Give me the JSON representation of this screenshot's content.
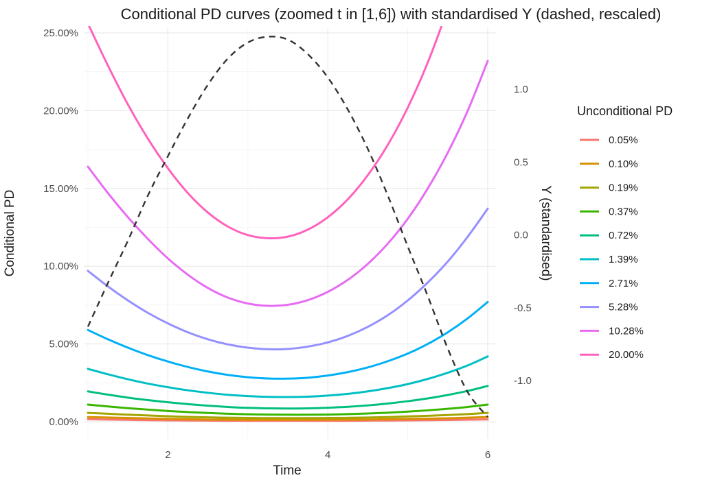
{
  "chart_data": {
    "type": "line",
    "title": "Conditional PD curves (zoomed t in [1,6]) with standardised Y (dashed, rescaled)",
    "xlabel": "Time",
    "ylabel": "Conditional PD",
    "y2label": "Y (standardised)",
    "xlim": [
      1,
      6
    ],
    "ylim": [
      0,
      0.25
    ],
    "y2lim": [
      -1.27,
      1.42
    ],
    "x_ticks": [
      2,
      4,
      6
    ],
    "x_tick_labels": [
      "2",
      "4",
      "6"
    ],
    "y_ticks": [
      0,
      0.05,
      0.1,
      0.15,
      0.2,
      0.25
    ],
    "y_tick_labels": [
      "0.00%",
      "5.00%",
      "10.00%",
      "15.00%",
      "20.00%",
      "25.00%"
    ],
    "y2_ticks": [
      -1.0,
      -0.5,
      0.0,
      0.5,
      1.0
    ],
    "y2_tick_labels": [
      "-1.0",
      "-0.5",
      "0.0",
      "0.5",
      "1.0"
    ],
    "grid": true,
    "legend": {
      "title": "Unconditional PD",
      "position": "right"
    },
    "x": [
      1.0,
      1.25,
      1.5,
      1.75,
      2.0,
      2.25,
      2.5,
      2.75,
      3.0,
      3.25,
      3.5,
      3.75,
      4.0,
      4.25,
      4.5,
      4.75,
      5.0,
      5.25,
      5.5,
      5.75,
      6.0
    ],
    "series": [
      {
        "name": "0.05%",
        "color": "#F8766D",
        "values": [
          0.0016,
          0.0014,
          0.0012,
          0.001,
          0.0009,
          0.0008,
          0.0007,
          0.0006,
          0.0006,
          0.0006,
          0.0006,
          0.0006,
          0.0006,
          0.0006,
          0.0007,
          0.0008,
          0.0009,
          0.001,
          0.0011,
          0.0013,
          0.0015
        ]
      },
      {
        "name": "0.10%",
        "color": "#D89000",
        "values": [
          0.003,
          0.0027,
          0.0024,
          0.0021,
          0.0018,
          0.0016,
          0.0014,
          0.0013,
          0.0012,
          0.0012,
          0.0012,
          0.0012,
          0.0013,
          0.0013,
          0.0014,
          0.0016,
          0.0018,
          0.002,
          0.0022,
          0.0026,
          0.003
        ]
      },
      {
        "name": "0.19%",
        "color": "#A3A500",
        "values": [
          0.0057,
          0.0051,
          0.0045,
          0.004,
          0.0035,
          0.0031,
          0.0028,
          0.0026,
          0.0024,
          0.0023,
          0.0023,
          0.0023,
          0.0024,
          0.0025,
          0.0027,
          0.003,
          0.0034,
          0.0038,
          0.0043,
          0.0049,
          0.0057
        ]
      },
      {
        "name": "0.37%",
        "color": "#39B600",
        "values": [
          0.011,
          0.0098,
          0.0087,
          0.0078,
          0.0069,
          0.0062,
          0.0056,
          0.0051,
          0.0048,
          0.0046,
          0.0045,
          0.0045,
          0.0046,
          0.0049,
          0.0053,
          0.0058,
          0.0065,
          0.0073,
          0.0083,
          0.0095,
          0.011
        ]
      },
      {
        "name": "0.72%",
        "color": "#00BF7D",
        "values": [
          0.0195,
          0.0174,
          0.0155,
          0.0139,
          0.0125,
          0.0113,
          0.0103,
          0.0095,
          0.0089,
          0.0086,
          0.0085,
          0.0086,
          0.009,
          0.0096,
          0.0105,
          0.0117,
          0.0132,
          0.015,
          0.0172,
          0.0198,
          0.023
        ]
      },
      {
        "name": "1.39%",
        "color": "#00BFC4",
        "values": [
          0.034,
          0.0305,
          0.0273,
          0.0245,
          0.0222,
          0.0202,
          0.0186,
          0.0173,
          0.0165,
          0.016,
          0.0159,
          0.0161,
          0.0168,
          0.0179,
          0.0195,
          0.0216,
          0.0242,
          0.0275,
          0.0315,
          0.0362,
          0.042
        ]
      },
      {
        "name": "2.71%",
        "color": "#00B0F6",
        "values": [
          0.059,
          0.053,
          0.0476,
          0.0428,
          0.0387,
          0.0352,
          0.0323,
          0.0301,
          0.0286,
          0.0278,
          0.0277,
          0.0283,
          0.0297,
          0.0319,
          0.0349,
          0.0389,
          0.0438,
          0.05,
          0.0575,
          0.0665,
          0.077
        ]
      },
      {
        "name": "5.28%",
        "color": "#9590FF",
        "values": [
          0.097,
          0.087,
          0.078,
          0.07,
          0.0632,
          0.0575,
          0.053,
          0.0497,
          0.0476,
          0.0466,
          0.0468,
          0.0483,
          0.051,
          0.0552,
          0.061,
          0.0685,
          0.078,
          0.0895,
          0.103,
          0.119,
          0.137
        ]
      },
      {
        "name": "10.28%",
        "color": "#E76BF3",
        "values": [
          0.164,
          0.147,
          0.1315,
          0.1175,
          0.105,
          0.0945,
          0.086,
          0.0798,
          0.076,
          0.0745,
          0.0752,
          0.0782,
          0.0835,
          0.0912,
          0.1015,
          0.1145,
          0.1305,
          0.15,
          0.173,
          0.2,
          0.232
        ]
      },
      {
        "name": "20.00%",
        "color": "#FF62BC",
        "values": [
          0.256,
          0.229,
          0.204,
          0.182,
          0.163,
          0.147,
          0.1345,
          0.1255,
          0.12,
          0.118,
          0.119,
          0.1235,
          0.1315,
          0.143,
          0.1585,
          0.178,
          0.202,
          0.231,
          0.266,
          0.307,
          0.355
        ]
      }
    ],
    "secondary_series": {
      "name": "Y (standardised)",
      "style": "dashed",
      "color": "#333333",
      "x": [
        1.0,
        1.25,
        1.5,
        1.75,
        2.0,
        2.25,
        2.5,
        2.75,
        3.0,
        3.25,
        3.5,
        3.75,
        4.0,
        4.25,
        4.5,
        4.75,
        5.0,
        5.25,
        5.5,
        5.75,
        6.0
      ],
      "values": [
        -0.63,
        -0.33,
        -0.04,
        0.27,
        0.54,
        0.8,
        1.03,
        1.21,
        1.32,
        1.36,
        1.34,
        1.24,
        1.08,
        0.86,
        0.59,
        0.27,
        -0.08,
        -0.42,
        -0.78,
        -1.08,
        -1.25
      ]
    }
  }
}
